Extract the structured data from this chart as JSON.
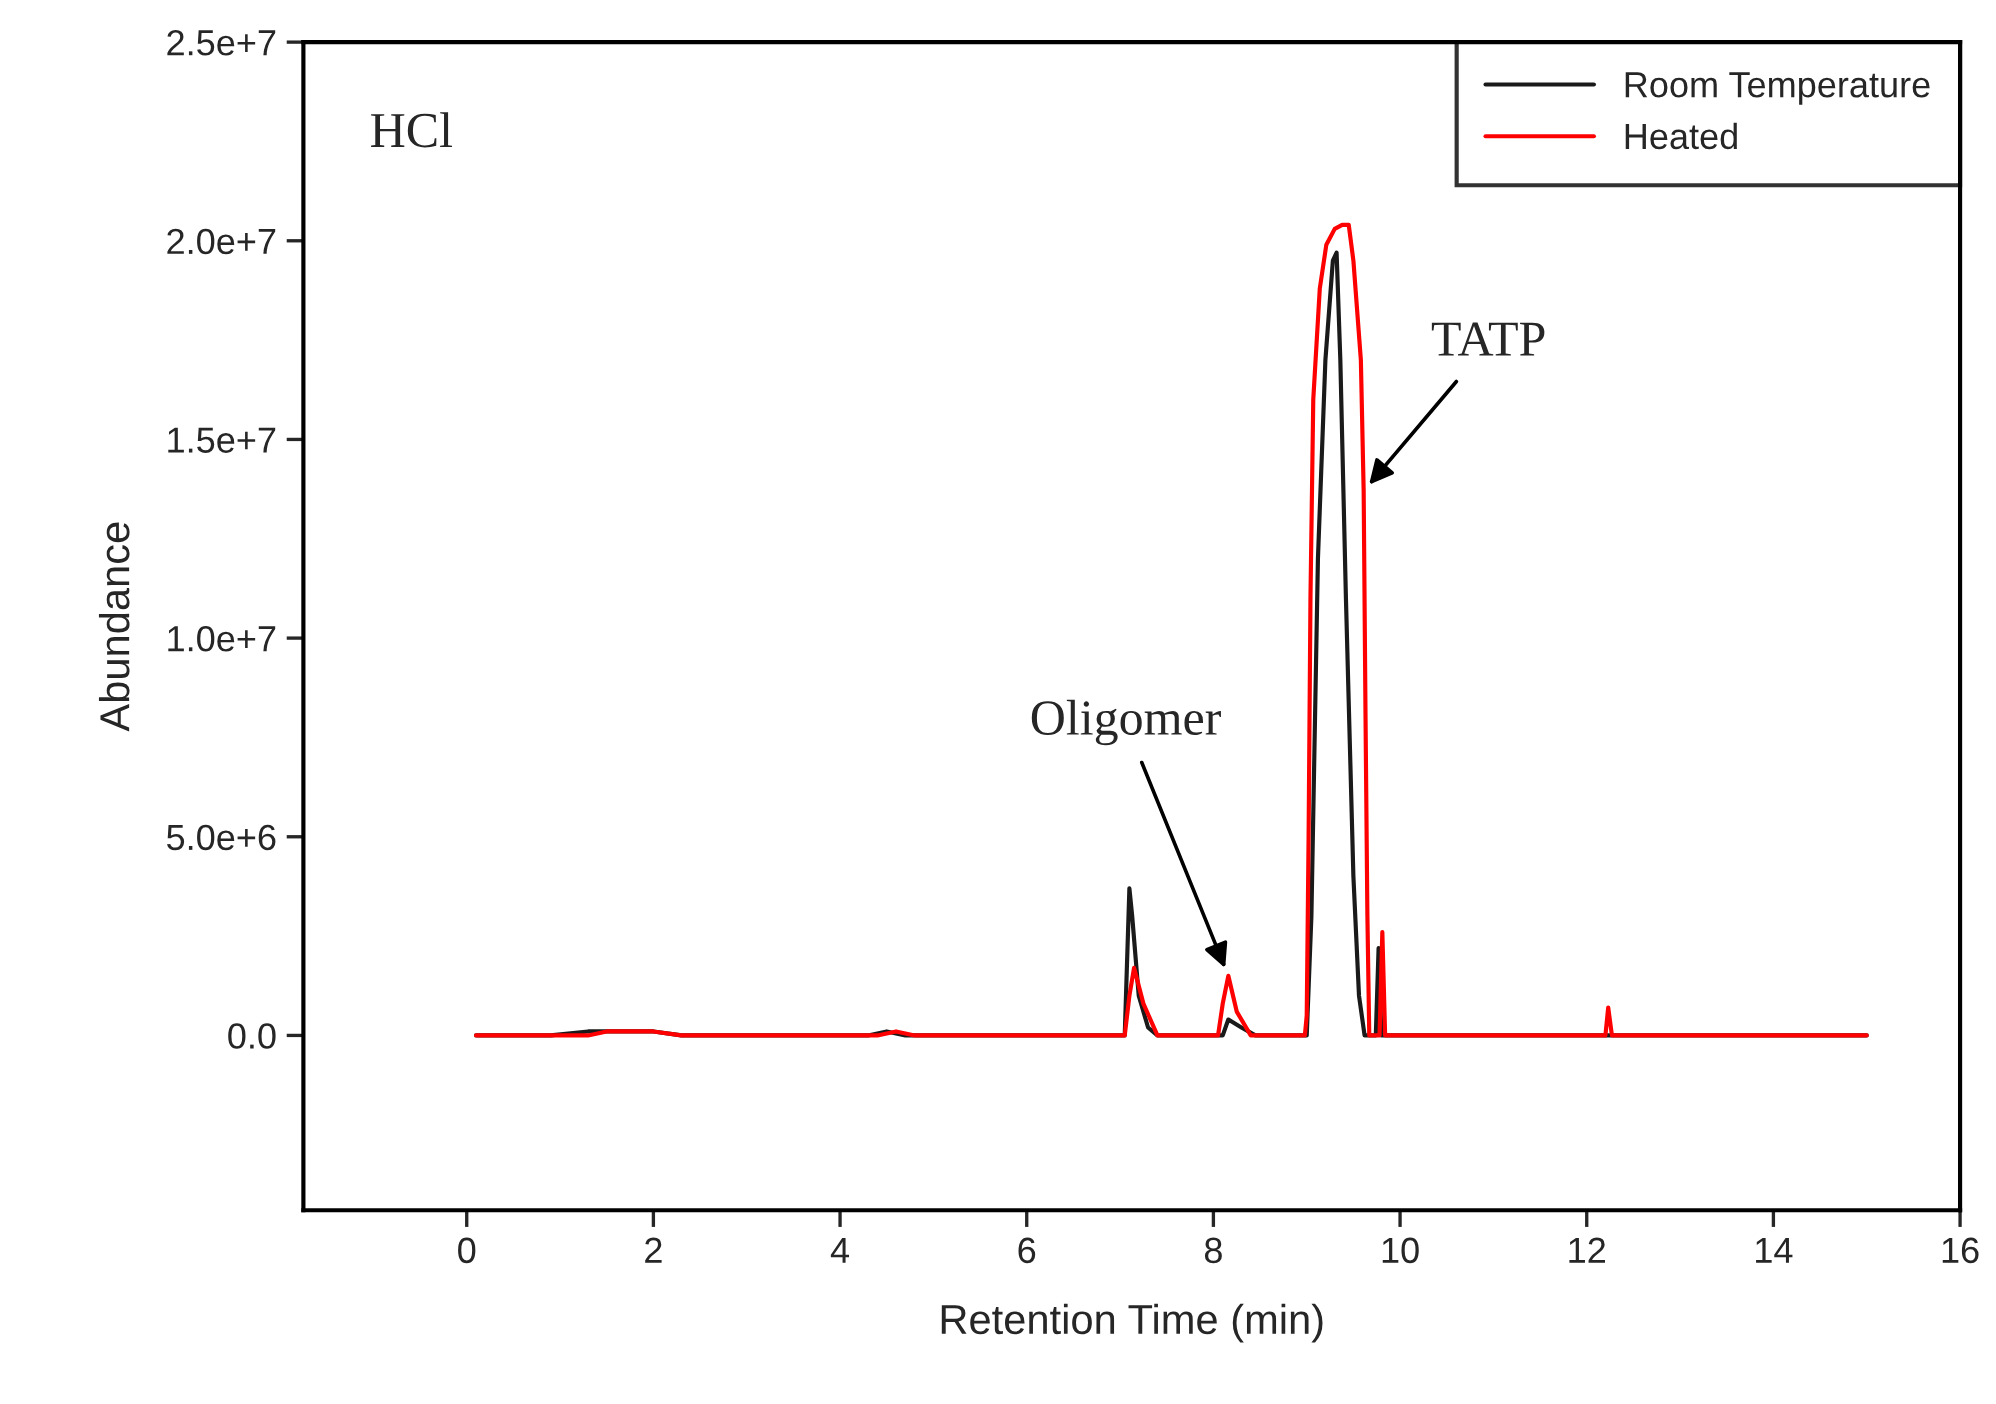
{
  "chart_data": {
    "type": "line",
    "xlabel": "Retention Time (min)",
    "ylabel": "Abundance",
    "xlim": [
      -1.75,
      16
    ],
    "xticks": [
      0,
      2,
      4,
      6,
      8,
      10,
      12,
      14,
      16
    ],
    "ylim": [
      -4400000,
      25000000
    ],
    "yticks": [
      {
        "value": 0,
        "label": "0.0"
      },
      {
        "value": 5000000,
        "label": "5.0e+6"
      },
      {
        "value": 10000000,
        "label": "1.0e+7"
      },
      {
        "value": 15000000,
        "label": "1.5e+7"
      },
      {
        "value": 20000000,
        "label": "2.0e+7"
      },
      {
        "value": 25000000,
        "label": "2.5e+7"
      }
    ],
    "grid": false,
    "legend": "top right",
    "line_style": "solid",
    "series": [
      {
        "name": "Room Temperature",
        "color": "#1a1a1a",
        "x": [
          0.1,
          0.9,
          1.3,
          1.5,
          1.7,
          2.0,
          2.3,
          2.7,
          4.3,
          4.5,
          4.7,
          7.05,
          7.1,
          7.13,
          7.2,
          7.3,
          7.4,
          8.1,
          8.16,
          8.3,
          8.45,
          9.0,
          9.05,
          9.12,
          9.2,
          9.28,
          9.32,
          9.36,
          9.42,
          9.5,
          9.56,
          9.62,
          9.74,
          9.77,
          9.8,
          15.0
        ],
        "values": [
          0,
          0,
          100000,
          100000,
          100000,
          100000,
          0,
          0,
          0,
          100000,
          0,
          0,
          3700000,
          3000000,
          1000000,
          200000,
          0,
          0,
          400000,
          200000,
          0,
          0,
          3000000,
          12000000,
          17000000,
          19500000,
          19700000,
          17000000,
          11000000,
          4000000,
          1000000,
          0,
          0,
          2200000,
          0,
          0
        ]
      },
      {
        "name": "Heated",
        "color": "#ff0000",
        "x": [
          0.1,
          1.3,
          1.5,
          1.7,
          2.0,
          2.3,
          4.4,
          4.6,
          4.8,
          7.05,
          7.1,
          7.15,
          7.25,
          7.4,
          8.05,
          8.1,
          8.16,
          8.25,
          8.4,
          8.98,
          9.0,
          9.02,
          9.04,
          9.07,
          9.14,
          9.21,
          9.3,
          9.38,
          9.45,
          9.5,
          9.58,
          9.61,
          9.63,
          9.65,
          9.67,
          9.78,
          9.81,
          9.84,
          11.6,
          12.2,
          12.23,
          12.27,
          15.0
        ],
        "values": [
          0,
          0,
          100000,
          100000,
          100000,
          0,
          0,
          100000,
          0,
          0,
          1000000,
          1700000,
          800000,
          0,
          0,
          800000,
          1500000,
          600000,
          0,
          0,
          500000,
          5000000,
          11000000,
          16000000,
          18800000,
          19900000,
          20300000,
          20400000,
          20400000,
          19500000,
          17000000,
          13700000,
          8000000,
          3000000,
          0,
          0,
          2600000,
          0,
          0,
          0,
          700000,
          0,
          0
        ]
      }
    ],
    "annotations": [
      "HCl",
      {
        "text": "Oligomer",
        "x": 8.16,
        "y": 1500000
      },
      {
        "text": "TATP",
        "x": 9.61,
        "y": 13700000
      }
    ]
  }
}
